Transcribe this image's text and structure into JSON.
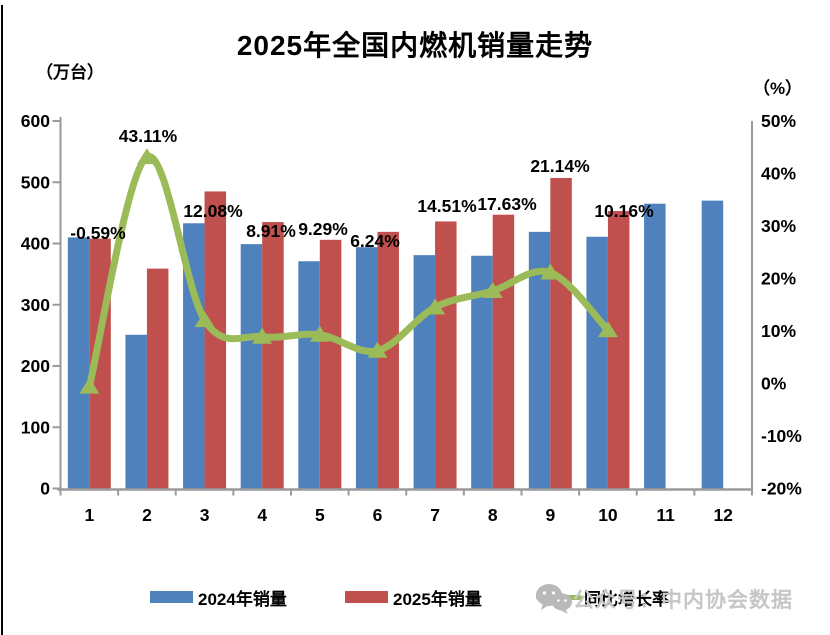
{
  "title": "2025年全国内燃机销量走势",
  "chart_data": {
    "type": "bar+line combo",
    "title": "2025年全国内燃机销量走势",
    "categories": [
      "1",
      "2",
      "3",
      "4",
      "5",
      "6",
      "7",
      "8",
      "9",
      "10",
      "11",
      "12"
    ],
    "series": [
      {
        "name": "2024年销量",
        "type": "bar",
        "color": "#4F81BD",
        "axis": "left",
        "values": [
          410,
          251,
          433,
          399,
          371,
          394,
          381,
          380,
          419,
          411,
          465,
          470
        ]
      },
      {
        "name": "2025年销量",
        "type": "bar",
        "color": "#C0504D",
        "axis": "left",
        "values": [
          408,
          359,
          485,
          435,
          406,
          419,
          436,
          447,
          507,
          453,
          null,
          null
        ]
      },
      {
        "name": "同比增长率",
        "type": "line",
        "color": "#9BBB59",
        "axis": "right",
        "marker": "triangle",
        "values": [
          -0.59,
          43.11,
          12.08,
          8.91,
          9.29,
          6.24,
          14.51,
          17.63,
          21.14,
          10.16,
          null,
          null
        ]
      }
    ],
    "data_labels": [
      "-0.59%",
      "43.11%",
      "12.08%",
      "8.91%",
      "9.29%",
      "6.24%",
      "14.51%",
      "17.63%",
      "21.14%",
      "10.16%"
    ],
    "left_axis": {
      "label": "（万台）",
      "min": 0,
      "max": 600,
      "ticks": [
        "0",
        "100",
        "200",
        "300",
        "400",
        "500",
        "600"
      ]
    },
    "right_axis": {
      "label": "（%）",
      "min": -20,
      "max": 50,
      "ticks": [
        "50%",
        "40%",
        "30%",
        "20%",
        "10%",
        "0%",
        "-10%",
        "-20%"
      ]
    },
    "xlabel": "",
    "ylabel": "（万台）",
    "grid": false,
    "legend_position": "bottom",
    "axis_color": "#9a9a9a",
    "label_color": "#000000"
  },
  "watermark": {
    "icon": "wechat-icon",
    "text": "公众号：中内协会数据"
  }
}
